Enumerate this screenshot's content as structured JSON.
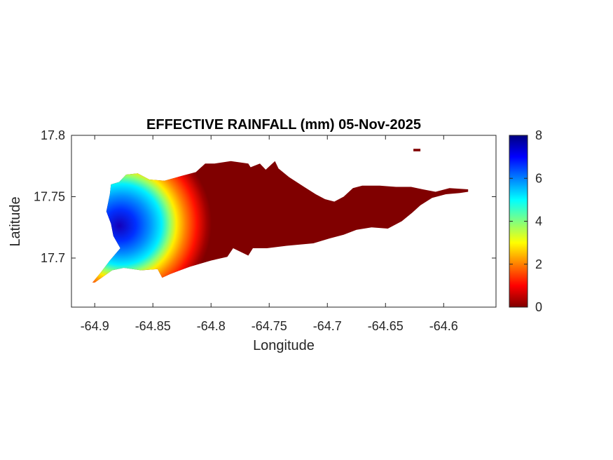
{
  "chart_data": {
    "type": "heatmap",
    "title": "EFFECTIVE RAINFALL (mm) 05-Nov-2025",
    "xlabel": "Longitude",
    "ylabel": "Latitude",
    "xlim": [
      -64.92,
      -64.555
    ],
    "ylim": [
      17.66,
      17.8
    ],
    "xticks": [
      -64.9,
      -64.85,
      -64.8,
      -64.75,
      -64.7,
      -64.65,
      -64.6
    ],
    "xtick_labels": [
      "-64.9",
      "-64.85",
      "-64.8",
      "-64.75",
      "-64.7",
      "-64.65",
      "-64.6"
    ],
    "yticks": [
      17.7,
      17.75,
      17.8
    ],
    "ytick_labels": [
      "17.7",
      "17.75",
      "17.8"
    ],
    "colorbar": {
      "colormap": "jet",
      "range": [
        0,
        8
      ],
      "ticks": [
        0,
        2,
        4,
        6,
        8
      ],
      "tick_labels": [
        "0",
        "2",
        "4",
        "6",
        "8"
      ]
    },
    "rain_field": {
      "peak_value_mm": 8,
      "peak_location": [
        -64.875,
        17.728
      ],
      "values_east_of_-64.80": 0
    },
    "island_outline": [
      [
        -64.9,
        17.68
      ],
      [
        -64.885,
        17.69
      ],
      [
        -64.875,
        17.692
      ],
      [
        -64.86,
        17.69
      ],
      [
        -64.846,
        17.691
      ],
      [
        -64.842,
        17.684
      ],
      [
        -64.835,
        17.687
      ],
      [
        -64.818,
        17.693
      ],
      [
        -64.8,
        17.698
      ],
      [
        -64.786,
        17.701
      ],
      [
        -64.781,
        17.708
      ],
      [
        -64.768,
        17.702
      ],
      [
        -64.764,
        17.708
      ],
      [
        -64.752,
        17.708
      ],
      [
        -64.735,
        17.71
      ],
      [
        -64.712,
        17.712
      ],
      [
        -64.698,
        17.716
      ],
      [
        -64.686,
        17.719
      ],
      [
        -64.675,
        17.723
      ],
      [
        -64.662,
        17.725
      ],
      [
        -64.648,
        17.724
      ],
      [
        -64.636,
        17.73
      ],
      [
        -64.627,
        17.737
      ],
      [
        -64.62,
        17.743
      ],
      [
        -64.61,
        17.749
      ],
      [
        -64.598,
        17.752
      ],
      [
        -64.586,
        17.753
      ],
      [
        -64.579,
        17.754
      ],
      [
        -64.579,
        17.756
      ],
      [
        -64.595,
        17.757
      ],
      [
        -64.607,
        17.754
      ],
      [
        -64.618,
        17.756
      ],
      [
        -64.628,
        17.758
      ],
      [
        -64.641,
        17.758
      ],
      [
        -64.655,
        17.759
      ],
      [
        -64.67,
        17.759
      ],
      [
        -64.678,
        17.757
      ],
      [
        -64.686,
        17.75
      ],
      [
        -64.694,
        17.746
      ],
      [
        -64.702,
        17.748
      ],
      [
        -64.71,
        17.752
      ],
      [
        -64.72,
        17.758
      ],
      [
        -64.733,
        17.766
      ],
      [
        -64.742,
        17.773
      ],
      [
        -64.745,
        17.779
      ],
      [
        -64.753,
        17.772
      ],
      [
        -64.758,
        17.777
      ],
      [
        -64.766,
        17.774
      ],
      [
        -64.768,
        17.777
      ],
      [
        -64.783,
        17.779
      ],
      [
        -64.797,
        17.777
      ],
      [
        -64.805,
        17.777
      ],
      [
        -64.813,
        17.77
      ],
      [
        -64.825,
        17.767
      ],
      [
        -64.84,
        17.763
      ],
      [
        -64.853,
        17.764
      ],
      [
        -64.863,
        17.769
      ],
      [
        -64.873,
        17.768
      ],
      [
        -64.879,
        17.762
      ],
      [
        -64.886,
        17.76
      ],
      [
        -64.887,
        17.752
      ],
      [
        -64.89,
        17.738
      ],
      [
        -64.886,
        17.728
      ],
      [
        -64.884,
        17.718
      ],
      [
        -64.878,
        17.708
      ],
      [
        -64.887,
        17.698
      ],
      [
        -64.895,
        17.688
      ],
      [
        -64.902,
        17.68
      ]
    ],
    "islet": [
      [
        -64.626,
        17.789
      ],
      [
        -64.62,
        17.789
      ],
      [
        -64.62,
        17.787
      ],
      [
        -64.626,
        17.787
      ]
    ]
  },
  "colors": {
    "axis": "#262626",
    "background": "#ffffff",
    "jet_stops": [
      "#000080",
      "#0000ff",
      "#0080ff",
      "#00ffff",
      "#80ff80",
      "#ffff00",
      "#ff8000",
      "#ff0000",
      "#800000"
    ]
  }
}
